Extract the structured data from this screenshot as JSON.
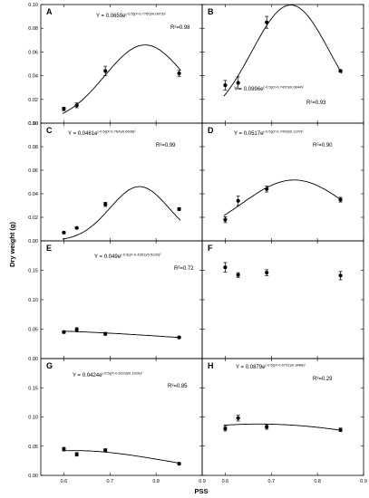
{
  "figure": {
    "ylabel": "Dry weight (g)",
    "xlabel": "PSS",
    "x_ticks": [
      "0.6",
      "0.7",
      "0.8",
      "0.9"
    ]
  },
  "chart_data": [
    {
      "type": "scatter",
      "label": "A",
      "equation": "Y = 0.0659e",
      "exponent": "(-0.5((X-0.7760)/0.0873)²",
      "r2": "R²=0.98",
      "x": [
        0.6,
        0.628,
        0.69,
        0.85
      ],
      "y": [
        0.012,
        0.015,
        0.044,
        0.042
      ],
      "err": [
        0.0015,
        0.002,
        0.004,
        0.0025
      ],
      "fit": {
        "a": 0.0659,
        "b": 0.776,
        "c": 0.0873
      },
      "xlim": [
        0.55,
        0.9
      ],
      "ylim": [
        0,
        0.1
      ],
      "y_ticks": [
        0,
        0.02,
        0.04,
        0.06,
        0.08,
        0.1
      ],
      "y_tick_labels": [
        "0.00",
        "0.02",
        "0.04",
        "0.06",
        "0.08",
        "0.10"
      ]
    },
    {
      "type": "scatter",
      "label": "B",
      "equation": "Y = 0.0996e",
      "exponent": "(-0.5((X-0.7420)/0.0844)²",
      "r2": "R²=0.93",
      "x": [
        0.6,
        0.628,
        0.69,
        0.85
      ],
      "y": [
        0.032,
        0.034,
        0.085,
        0.044
      ],
      "err": [
        0.004,
        0.005,
        0.005,
        0.001
      ],
      "fit": {
        "a": 0.0996,
        "b": 0.742,
        "c": 0.0844
      },
      "xlim": [
        0.55,
        0.9
      ],
      "ylim": [
        0,
        0.1
      ],
      "y_ticks": [
        0,
        0.02,
        0.04,
        0.06,
        0.08,
        0.1
      ],
      "y_tick_labels": []
    },
    {
      "type": "scatter",
      "label": "C",
      "equation": "Y = 0.0461e",
      "exponent": "(-0.5((X-0.764)/0.0638)²",
      "r2": "R²=0.99",
      "x": [
        0.6,
        0.628,
        0.69,
        0.85
      ],
      "y": [
        0.007,
        0.011,
        0.031,
        0.027
      ],
      "err": [
        0.0008,
        0.0008,
        0.0018,
        0.0012
      ],
      "fit": {
        "a": 0.0461,
        "b": 0.764,
        "c": 0.0638
      },
      "xlim": [
        0.55,
        0.9
      ],
      "ylim": [
        0,
        0.1
      ],
      "y_ticks": [
        0,
        0.02,
        0.04,
        0.06,
        0.08,
        0.1
      ],
      "y_tick_labels": [
        "0.00",
        "0.02",
        "0.04",
        "0.06",
        "0.08",
        "0.10"
      ]
    },
    {
      "type": "scatter",
      "label": "D",
      "equation": "Y = 0.0517e",
      "exponent": "(-0.5((X-0.7493)/0.1147)²",
      "r2": "R²=0.90",
      "x": [
        0.6,
        0.628,
        0.69,
        0.85
      ],
      "y": [
        0.018,
        0.034,
        0.044,
        0.035
      ],
      "err": [
        0.0025,
        0.004,
        0.0025,
        0.002
      ],
      "fit": {
        "a": 0.0517,
        "b": 0.7493,
        "c": 0.1147
      },
      "xlim": [
        0.55,
        0.9
      ],
      "ylim": [
        0,
        0.1
      ],
      "y_ticks": [
        0,
        0.02,
        0.04,
        0.06,
        0.08,
        0.1
      ],
      "y_tick_labels": []
    },
    {
      "type": "scatter",
      "label": "E",
      "equation": "Y = 0.049e",
      "exponent": "(-0.5((X-0.4351)/0.5220)²",
      "r2": "R²=0.72",
      "x": [
        0.6,
        0.628,
        0.69,
        0.85
      ],
      "y": [
        0.045,
        0.049,
        0.042,
        0.036
      ],
      "err": [
        0.002,
        0.0035,
        0.0025,
        0.0015
      ],
      "fit": {
        "a": 0.049,
        "b": 0.4351,
        "c": 0.522
      },
      "xlim": [
        0.55,
        0.9
      ],
      "ylim": [
        0,
        0.2
      ],
      "y_ticks": [
        0,
        0.05,
        0.1,
        0.15,
        0.2
      ],
      "y_tick_labels": [
        "0.00",
        "0.05",
        "0.10",
        "0.15",
        ""
      ]
    },
    {
      "type": "scatter",
      "label": "F",
      "equation": "",
      "exponent": "",
      "r2": "",
      "x": [
        0.6,
        0.628,
        0.69,
        0.85
      ],
      "y": [
        0.155,
        0.142,
        0.146,
        0.141
      ],
      "err": [
        0.008,
        0.004,
        0.005,
        0.007
      ],
      "fit": null,
      "xlim": [
        0.55,
        0.9
      ],
      "ylim": [
        0,
        0.2
      ],
      "y_ticks": [
        0,
        0.05,
        0.1,
        0.15,
        0.2
      ],
      "y_tick_labels": []
    },
    {
      "type": "scatter",
      "label": "G",
      "equation": "Y = 0.0424e",
      "exponent": "(-0.5((X-0.6223)/0.1929)²",
      "r2": "R²=0.85",
      "x": [
        0.6,
        0.628,
        0.69,
        0.85
      ],
      "y": [
        0.045,
        0.036,
        0.043,
        0.02
      ],
      "err": [
        0.003,
        0.003,
        0.0025,
        0.0015
      ],
      "fit": {
        "a": 0.0424,
        "b": 0.6223,
        "c": 0.1929
      },
      "xlim": [
        0.55,
        0.9
      ],
      "ylim": [
        0,
        0.2
      ],
      "y_ticks": [
        0,
        0.05,
        0.1,
        0.15,
        0.2
      ],
      "y_tick_labels": [
        "0.00",
        "0.05",
        "0.10",
        "0.15",
        ""
      ]
    },
    {
      "type": "scatter",
      "label": "H",
      "equation": "Y = 0.0879e",
      "exponent": "(-0.5((X-0.6731)/0.3486)²",
      "r2": "R²=0.29",
      "x": [
        0.6,
        0.628,
        0.69,
        0.85
      ],
      "y": [
        0.08,
        0.098,
        0.083,
        0.078
      ],
      "err": [
        0.004,
        0.005,
        0.004,
        0.003
      ],
      "fit": {
        "a": 0.0879,
        "b": 0.6731,
        "c": 0.3486
      },
      "xlim": [
        0.55,
        0.9
      ],
      "ylim": [
        0,
        0.2
      ],
      "y_ticks": [
        0,
        0.05,
        0.1,
        0.15,
        0.2
      ],
      "y_tick_labels": []
    }
  ]
}
